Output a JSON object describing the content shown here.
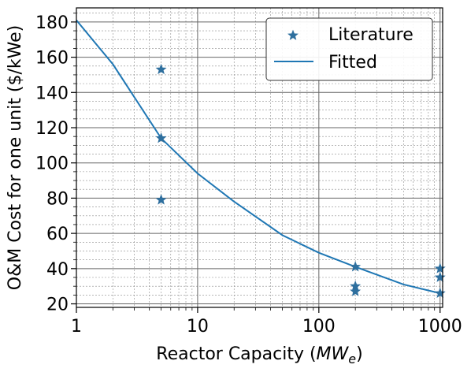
{
  "chart_data": {
    "type": "scatter",
    "xlabel": "Reactor Capacity (MW_e)",
    "xlabel_parts": {
      "main": "Reactor Capacity (",
      "sym": "MW",
      "sub": "e",
      "end": ")"
    },
    "ylabel": "O&M Cost for one unit ($/kWe)",
    "x_scale": "log",
    "xlim": [
      1,
      1050
    ],
    "ylim": [
      18,
      188
    ],
    "x_ticks": [
      {
        "value": 1,
        "label": "1"
      },
      {
        "value": 10,
        "label": "10"
      },
      {
        "value": 100,
        "label": "100"
      },
      {
        "value": 1000,
        "label": "1000"
      }
    ],
    "y_ticks": [
      20,
      40,
      60,
      80,
      100,
      120,
      140,
      160,
      180
    ],
    "grid": "major and minor, dashed",
    "legend_position": "top-right",
    "series": [
      {
        "name": "Literature",
        "kind": "scatter",
        "marker": "star",
        "color": "#2e6f9e",
        "points": [
          {
            "x": 5,
            "y": 153
          },
          {
            "x": 5,
            "y": 114
          },
          {
            "x": 5,
            "y": 79
          },
          {
            "x": 200,
            "y": 41
          },
          {
            "x": 200,
            "y": 30
          },
          {
            "x": 200,
            "y": 27
          },
          {
            "x": 1000,
            "y": 40
          },
          {
            "x": 1000,
            "y": 35
          },
          {
            "x": 1000,
            "y": 26
          }
        ]
      },
      {
        "name": "Fitted",
        "kind": "line",
        "color": "#1f77b4",
        "points": [
          {
            "x": 1,
            "y": 181
          },
          {
            "x": 2,
            "y": 156
          },
          {
            "x": 5,
            "y": 114
          },
          {
            "x": 10,
            "y": 94
          },
          {
            "x": 20,
            "y": 78
          },
          {
            "x": 50,
            "y": 59
          },
          {
            "x": 100,
            "y": 49
          },
          {
            "x": 200,
            "y": 41
          },
          {
            "x": 500,
            "y": 31
          },
          {
            "x": 1000,
            "y": 26
          }
        ]
      }
    ]
  }
}
